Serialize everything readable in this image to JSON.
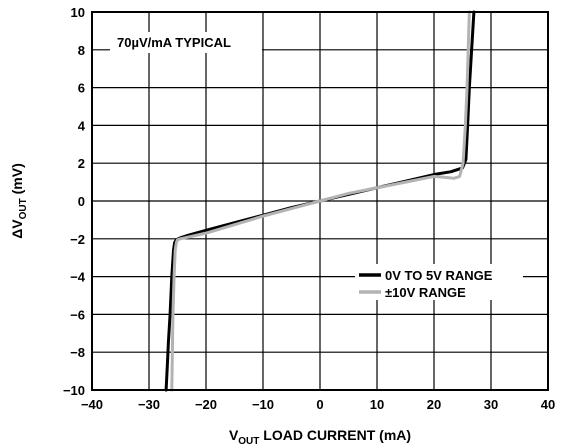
{
  "chart_data": {
    "type": "line",
    "title": "",
    "xlabel": {
      "main": "V",
      "sub": "OUT",
      "rest": " LOAD CURRENT (mA)"
    },
    "ylabel": {
      "main": "ΔV",
      "sub": "OUT",
      "rest": " (mV)"
    },
    "xlim": [
      -40,
      40
    ],
    "ylim": [
      -10,
      10
    ],
    "x_ticks": [
      -40,
      -30,
      -20,
      -10,
      0,
      10,
      20,
      30,
      40
    ],
    "y_ticks": [
      -10,
      -8,
      -6,
      -4,
      -2,
      0,
      2,
      4,
      6,
      8,
      10
    ],
    "x_tick_labels": [
      "−40",
      "−30",
      "−20",
      "−10",
      "0",
      "10",
      "20",
      "30",
      "40"
    ],
    "y_tick_labels": [
      "−10",
      "−8",
      "−6",
      "−4",
      "−2",
      "0",
      "2",
      "4",
      "6",
      "8",
      "10"
    ],
    "grid": true,
    "annotation": "70µV/mA TYPICAL",
    "legend_position": "lower-right",
    "series": [
      {
        "name": "0V TO 5V RANGE",
        "color": "#000000",
        "x": [
          -27.0,
          -26.8,
          -26.6,
          -26.3,
          -26.0,
          -25.7,
          -25.5,
          -25.2,
          -24.5,
          -23.0,
          -20.0,
          -15.0,
          -10.0,
          -5.0,
          0.0,
          5.0,
          10.0,
          15.0,
          20.0,
          23.0,
          25.0,
          25.6,
          25.9,
          26.2,
          26.6,
          27.0
        ],
        "y": [
          -10.0,
          -8.8,
          -7.5,
          -6.0,
          -4.0,
          -2.6,
          -2.2,
          -2.05,
          -1.95,
          -1.8,
          -1.55,
          -1.15,
          -0.75,
          -0.35,
          0.0,
          0.35,
          0.7,
          1.05,
          1.4,
          1.55,
          1.75,
          2.2,
          4.0,
          6.0,
          8.0,
          10.0
        ]
      },
      {
        "name": "±10V RANGE",
        "color": "#b3b3b3",
        "x": [
          -26.0,
          -25.9,
          -25.8,
          -25.6,
          -25.4,
          -25.2,
          -25.0,
          -24.5,
          -23.0,
          -20.0,
          -15.0,
          -10.0,
          -5.0,
          0.0,
          5.0,
          10.0,
          15.0,
          20.0,
          22.0,
          23.5,
          24.5,
          25.1,
          25.5,
          25.8,
          26.0,
          26.2
        ],
        "y": [
          -10.0,
          -8.0,
          -6.0,
          -4.0,
          -2.6,
          -2.2,
          -2.05,
          -2.0,
          -1.9,
          -1.7,
          -1.25,
          -0.8,
          -0.4,
          0.0,
          0.4,
          0.7,
          1.0,
          1.3,
          1.25,
          1.2,
          1.3,
          2.0,
          4.0,
          6.0,
          8.0,
          10.0
        ]
      }
    ]
  }
}
